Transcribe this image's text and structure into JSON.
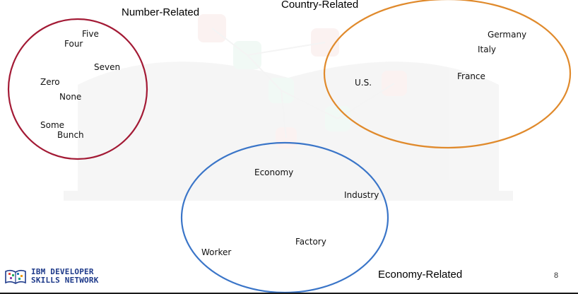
{
  "colors": {
    "number_ellipse": "#a31a35",
    "country_ellipse": "#e08a2c",
    "economy_ellipse": "#3a75c8",
    "logo": "#1e3a8a"
  },
  "groups": {
    "number": {
      "title": "Number-Related",
      "words": [
        "Five",
        "Four",
        "Seven",
        "Zero",
        "None",
        "Some",
        "Bunch"
      ]
    },
    "country": {
      "title": "Country-Related",
      "words": [
        "Germany",
        "Italy",
        "France",
        "U.S."
      ]
    },
    "economy": {
      "title": "Economy-Related",
      "words": [
        "Economy",
        "Industry",
        "Factory",
        "Worker"
      ]
    }
  },
  "logo": {
    "line1": "IBM DEVELOPER",
    "line2": "SKILLS NETWORK",
    "icon": "ibm-skills-network-logo-icon"
  },
  "page_number": "8"
}
